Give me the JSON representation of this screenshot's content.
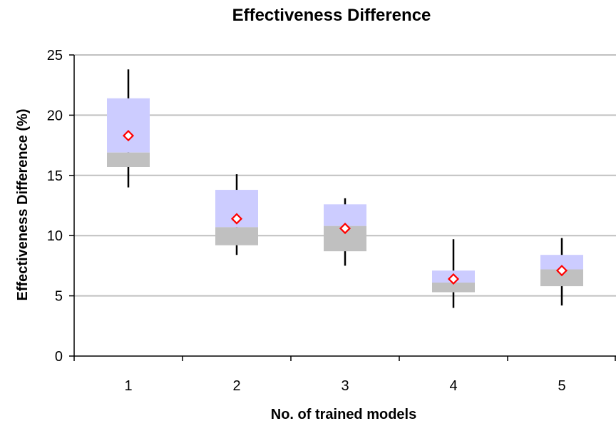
{
  "chart_data": {
    "type": "box",
    "title": "Effectiveness Difference",
    "xlabel": "No. of trained models",
    "ylabel": "Effectiveness Difference (%)",
    "ylim": [
      0,
      25
    ],
    "yticks": [
      "0",
      "5",
      "10",
      "15",
      "20",
      "25"
    ],
    "categories": [
      "1",
      "2",
      "3",
      "4",
      "5"
    ],
    "grid": "horizontal",
    "series": [
      {
        "category": "1",
        "min": 14.0,
        "q1": 15.7,
        "median": 16.9,
        "q3": 21.4,
        "max": 23.8,
        "mean": 18.3
      },
      {
        "category": "2",
        "min": 8.4,
        "q1": 9.2,
        "median": 10.7,
        "q3": 13.8,
        "max": 15.1,
        "mean": 11.4
      },
      {
        "category": "3",
        "min": 7.5,
        "q1": 8.7,
        "median": 10.8,
        "q3": 12.6,
        "max": 13.1,
        "mean": 10.6
      },
      {
        "category": "4",
        "min": 4.0,
        "q1": 5.3,
        "median": 6.1,
        "q3": 7.1,
        "max": 9.7,
        "mean": 6.4
      },
      {
        "category": "5",
        "min": 4.2,
        "q1": 5.8,
        "median": 7.2,
        "q3": 8.4,
        "max": 9.8,
        "mean": 7.1
      }
    ],
    "colors": {
      "upper_box": "#ccccff",
      "lower_box": "#c0c0c0",
      "mean_marker": "#ff0000",
      "whisker": "#000000",
      "grid": "#c0c0c0"
    }
  }
}
